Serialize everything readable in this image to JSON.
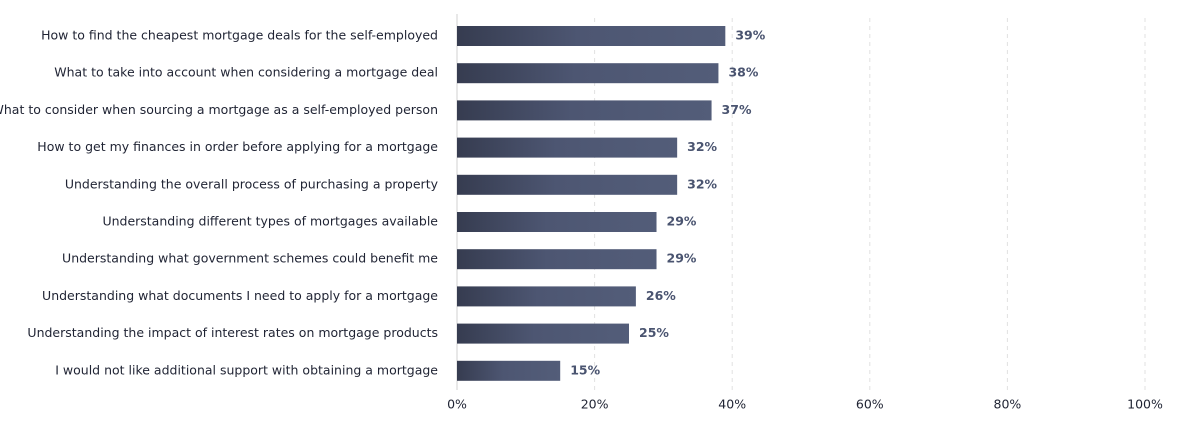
{
  "chart_data": {
    "type": "bar",
    "orientation": "horizontal",
    "categories": [
      "How to find the cheapest mortgage deals for the self-employed",
      "What to take into account when considering a mortgage deal",
      "What to consider when sourcing a mortgage as a self-employed person",
      "How to get my finances in order before applying for a mortgage",
      "Understanding the overall process of purchasing a property",
      "Understanding different types of mortgages available",
      "Understanding what government schemes could benefit me",
      "Understanding what documents I need to apply for a mortgage",
      "Understanding the impact of interest rates on mortgage products",
      "I would not like additional support with obtaining a mortgage"
    ],
    "values": [
      39,
      38,
      37,
      32,
      32,
      29,
      29,
      26,
      25,
      15
    ],
    "value_labels": [
      "39%",
      "38%",
      "37%",
      "32%",
      "32%",
      "29%",
      "29%",
      "26%",
      "25%",
      "15%"
    ],
    "color": "#4a5470",
    "xlim": [
      0,
      100
    ],
    "xticks": [
      {
        "value": 0,
        "label": "0%"
      },
      {
        "value": 20,
        "label": "20%"
      },
      {
        "value": 40,
        "label": "40%"
      },
      {
        "value": 60,
        "label": "60%"
      },
      {
        "value": 80,
        "label": "80%"
      },
      {
        "value": 100,
        "label": "100%"
      }
    ],
    "grid": true
  }
}
